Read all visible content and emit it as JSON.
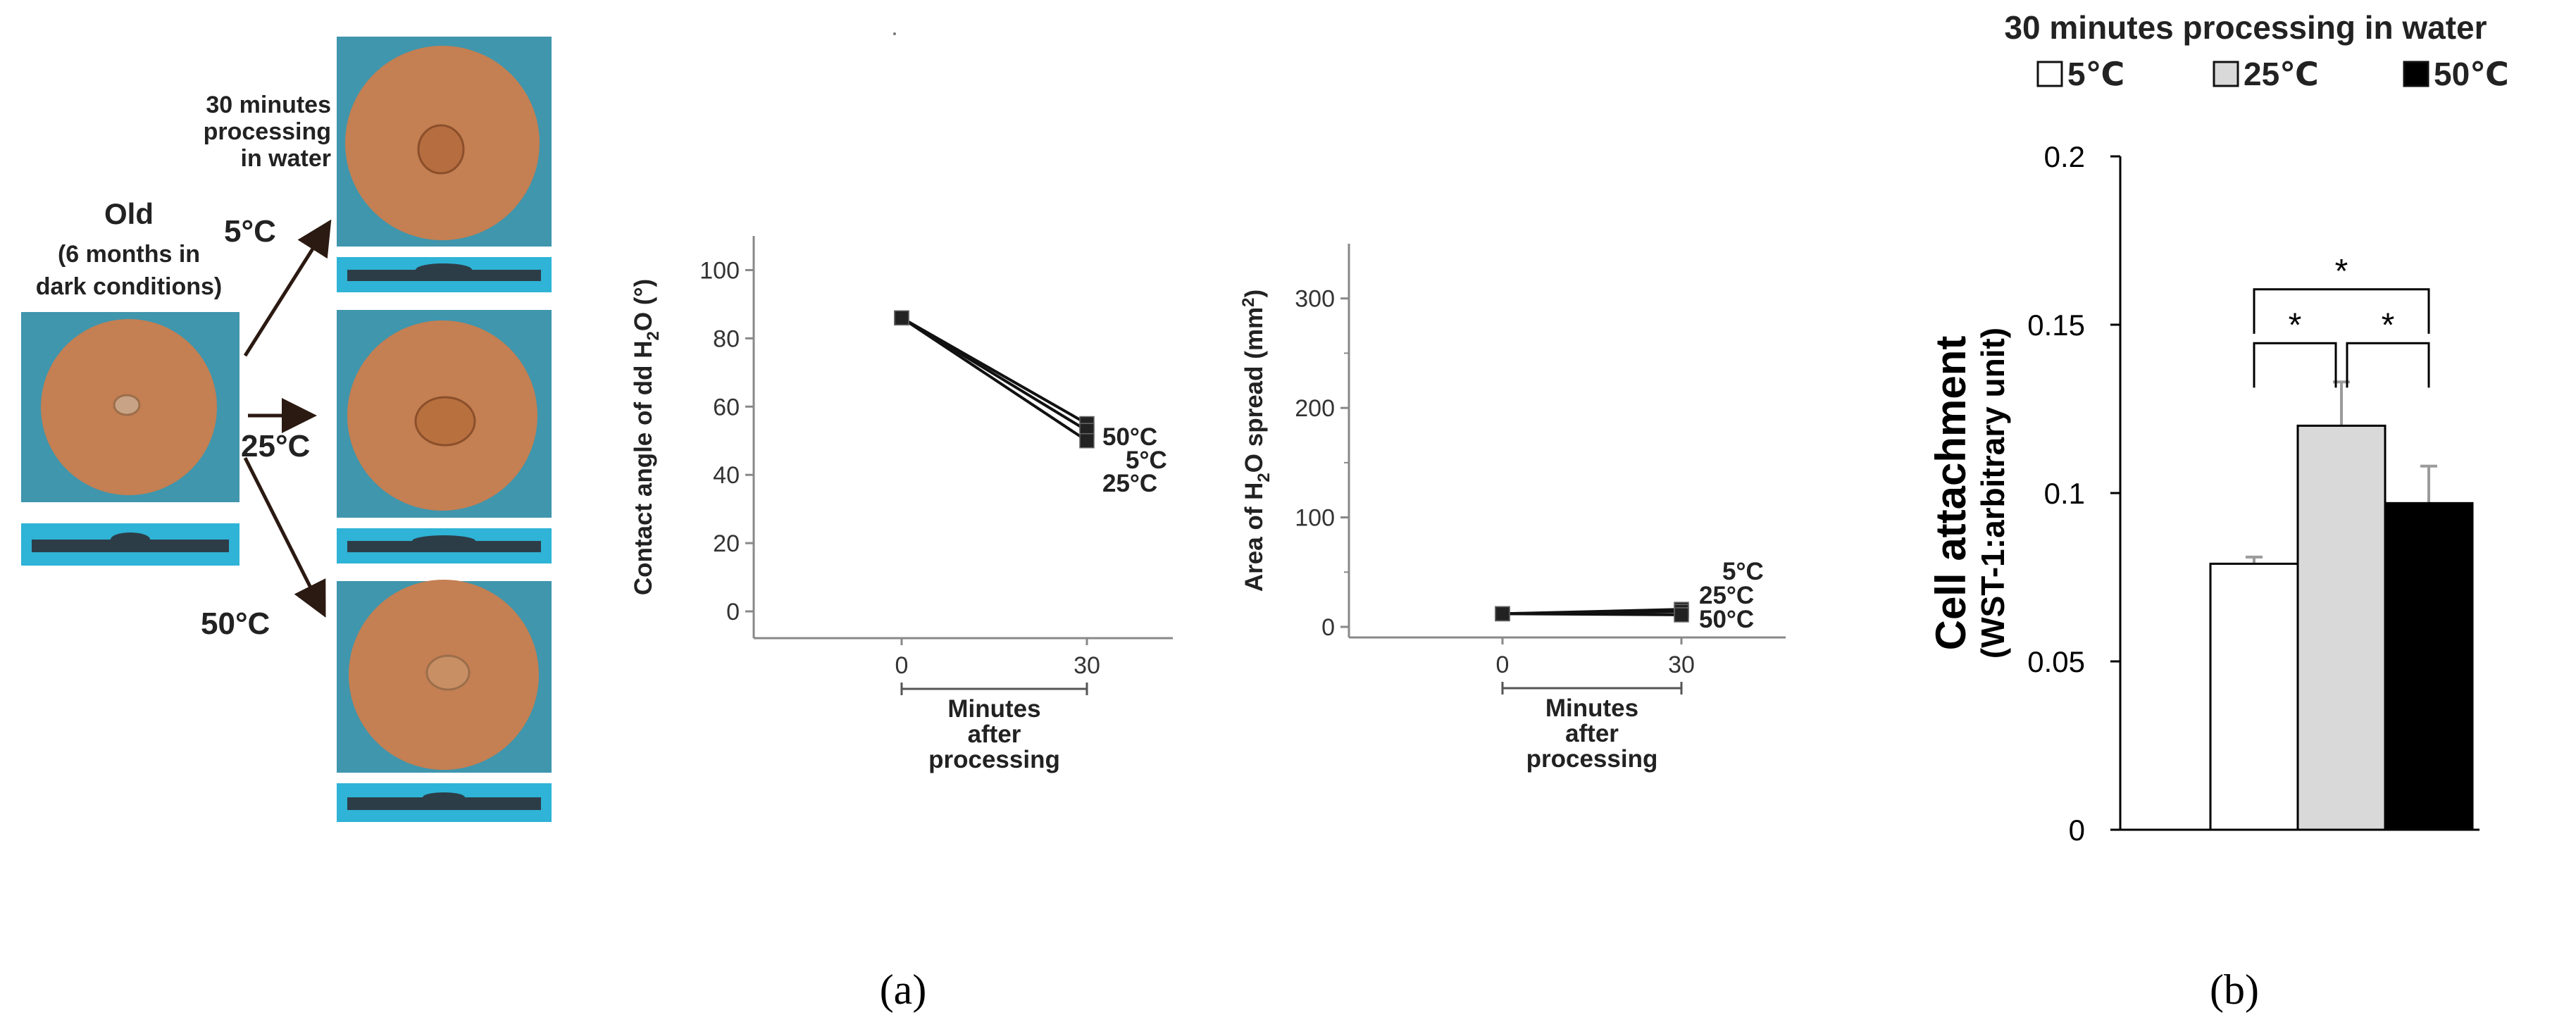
{
  "panel_a": {
    "photos": {
      "old_label": "Old",
      "old_sublabel_line1": "(6 months in",
      "old_sublabel_line2": "dark conditions)",
      "top_label_line1": "30 minutes",
      "top_label_line2": "processing",
      "top_label_line3": "in water",
      "arrow_labels": [
        "5°C",
        "25°C",
        "50°C"
      ]
    },
    "caption": "(a)"
  },
  "panel_b": {
    "caption": "(b)"
  },
  "chart_data": [
    {
      "type": "line",
      "ylabel_parts": [
        "Contact angle of dd H",
        "2",
        "O (°)"
      ],
      "xlabel_lines": [
        "Minutes",
        "after",
        "processing"
      ],
      "x": [
        0,
        30
      ],
      "xticks": [
        "0",
        "30"
      ],
      "yticks": [
        "0",
        "20",
        "40",
        "60",
        "80",
        "100"
      ],
      "ylim": [
        0,
        110
      ],
      "series": [
        {
          "name": "50°C",
          "values": [
            86,
            55
          ]
        },
        {
          "name": "5°C",
          "values": [
            86,
            53
          ]
        },
        {
          "name": "25°C",
          "values": [
            86,
            50
          ]
        }
      ]
    },
    {
      "type": "line",
      "ylabel_parts": [
        "Area of H",
        "2",
        "O spread (mm",
        "2",
        ")"
      ],
      "xlabel_lines": [
        "Minutes",
        "after",
        "processing"
      ],
      "x": [
        0,
        30
      ],
      "xticks": [
        "0",
        "30"
      ],
      "yticks": [
        "0",
        "100",
        "200",
        "300"
      ],
      "ylim": [
        0,
        350
      ],
      "series": [
        {
          "name": "5°C",
          "values": [
            12,
            16
          ]
        },
        {
          "name": "25°C",
          "values": [
            12,
            14
          ]
        },
        {
          "name": "50°C",
          "values": [
            12,
            11
          ]
        }
      ]
    },
    {
      "type": "bar",
      "title": "30 minutes processing in water",
      "ylabel": "Cell attachment",
      "ylabel2": "(WST-1:arbitrary unit)",
      "categories": [
        "5℃",
        "25℃",
        "50℃"
      ],
      "values": [
        0.079,
        0.12,
        0.097
      ],
      "errors": [
        0.002,
        0.013,
        0.011
      ],
      "colors": [
        "#ffffff",
        "#d9d9d9",
        "#000000"
      ],
      "yticks": [
        "0",
        "0.05",
        "0.1",
        "0.15",
        "0.2"
      ],
      "ylim": [
        0,
        0.2
      ],
      "legend": [
        "5℃",
        "25℃",
        "50℃"
      ],
      "significance": [
        "*",
        "*",
        "*"
      ]
    }
  ]
}
